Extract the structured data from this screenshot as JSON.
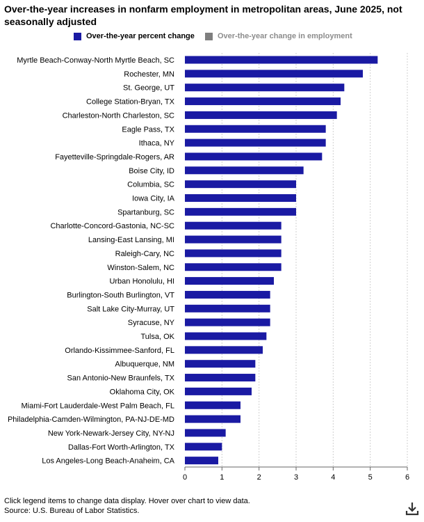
{
  "header": {
    "title": "Over-the-year increases in nonfarm employment in metropolitan areas, June 2025, not seasonally adjusted"
  },
  "legend": {
    "items": [
      {
        "label": "Over-the-year percent change",
        "color": "#1a1aa3",
        "active": true
      },
      {
        "label": "Over-the-year change in employment",
        "color": "#7f7f7f",
        "active": false
      }
    ]
  },
  "chart_data": {
    "type": "bar",
    "orientation": "horizontal",
    "title": "Over-the-year increases in nonfarm employment in metropolitan areas, June 2025, not seasonally adjusted",
    "categories": [
      "Myrtle Beach-Conway-North Myrtle Beach, SC",
      "Rochester, MN",
      "St. George, UT",
      "College Station-Bryan, TX",
      "Charleston-North Charleston, SC",
      "Eagle Pass, TX",
      "Ithaca, NY",
      "Fayetteville-Springdale-Rogers, AR",
      "Boise City, ID",
      "Columbia, SC",
      "Iowa City, IA",
      "Spartanburg, SC",
      "Charlotte-Concord-Gastonia, NC-SC",
      "Lansing-East Lansing, MI",
      "Raleigh-Cary, NC",
      "Winston-Salem, NC",
      "Urban Honolulu, HI",
      "Burlington-South Burlington, VT",
      "Salt Lake City-Murray, UT",
      "Syracuse, NY",
      "Tulsa, OK",
      "Orlando-Kissimmee-Sanford, FL",
      "Albuquerque, NM",
      "San Antonio-New Braunfels, TX",
      "Oklahoma City, OK",
      "Miami-Fort Lauderdale-West Palm Beach, FL",
      "Philadelphia-Camden-Wilmington, PA-NJ-DE-MD",
      "New York-Newark-Jersey City, NY-NJ",
      "Dallas-Fort Worth-Arlington, TX",
      "Los Angeles-Long Beach-Anaheim, CA"
    ],
    "series": [
      {
        "name": "Over-the-year percent change",
        "color": "#1a1aa3",
        "values": [
          5.2,
          4.8,
          4.3,
          4.2,
          4.1,
          3.8,
          3.8,
          3.7,
          3.2,
          3.0,
          3.0,
          3.0,
          2.6,
          2.6,
          2.6,
          2.6,
          2.4,
          2.3,
          2.3,
          2.3,
          2.2,
          2.1,
          1.9,
          1.9,
          1.8,
          1.5,
          1.5,
          1.1,
          1.0,
          0.9
        ]
      }
    ],
    "xlim": [
      0,
      6
    ],
    "xticks": [
      0,
      1,
      2,
      3,
      4,
      5,
      6
    ],
    "grid": "vertical dashed",
    "legend_position": "top"
  },
  "footer": {
    "note": "Click legend items to change data display. Hover over chart to view data.",
    "source": "Source: U.S. Bureau of Labor Statistics."
  }
}
